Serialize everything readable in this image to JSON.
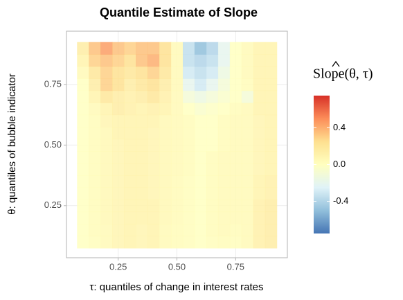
{
  "chart_data": {
    "type": "heatmap",
    "title": "Quantile Estimate of Slope",
    "x_label": "τ: quantiles of change in interest rates",
    "y_label": "θ: quantiles of bubble indicator",
    "legend_title": "Slope(θ, τ)",
    "x": [
      0.1,
      0.15,
      0.2,
      0.25,
      0.3,
      0.35,
      0.4,
      0.45,
      0.5,
      0.55,
      0.6,
      0.65,
      0.7,
      0.75,
      0.8,
      0.85,
      0.9
    ],
    "y": [
      0.1,
      0.15,
      0.2,
      0.25,
      0.3,
      0.35,
      0.4,
      0.45,
      0.5,
      0.55,
      0.6,
      0.65,
      0.7,
      0.75,
      0.8,
      0.85,
      0.9
    ],
    "z": [
      [
        0,
        0.02,
        0.05,
        0.08,
        0.1,
        0.08,
        0.1,
        0.05,
        0.03,
        0.02,
        0,
        0.02,
        0.03,
        0.02,
        0.05,
        0.12,
        0.15
      ],
      [
        0,
        0.03,
        0.05,
        0.08,
        0.1,
        0.08,
        0.1,
        0.05,
        0.03,
        0.02,
        0,
        0.03,
        0.05,
        0.03,
        0.05,
        0.12,
        0.15
      ],
      [
        0,
        0.03,
        0.06,
        0.08,
        0.1,
        0.1,
        0.1,
        0.06,
        0.04,
        0.02,
        0,
        0.03,
        0.05,
        0.05,
        0.05,
        0.12,
        0.15
      ],
      [
        0,
        0.03,
        0.06,
        0.08,
        0.1,
        0.1,
        0.1,
        0.06,
        0.04,
        0.02,
        0,
        0.03,
        0.05,
        0.05,
        0.05,
        0.12,
        0.15
      ],
      [
        0,
        0.03,
        0.06,
        0.08,
        0.1,
        0.1,
        0.08,
        0.06,
        0.04,
        0.02,
        0,
        0.03,
        0.05,
        0.05,
        0.05,
        0.1,
        0.12
      ],
      [
        0,
        0.03,
        0.06,
        0.08,
        0.1,
        0.1,
        0.08,
        0.06,
        0.04,
        0.02,
        0,
        0.03,
        0.05,
        0.05,
        0.05,
        0.1,
        0.12
      ],
      [
        0,
        0.03,
        0.06,
        0.08,
        0.1,
        0.1,
        0.08,
        0.06,
        0.05,
        0.03,
        0,
        0.03,
        0.05,
        0.05,
        0.05,
        0.08,
        0.1
      ],
      [
        0,
        0.03,
        0.06,
        0.08,
        0.1,
        0.1,
        0.08,
        0.06,
        0.05,
        0.03,
        0,
        0.03,
        0.05,
        0.05,
        0.05,
        0.08,
        0.1
      ],
      [
        0,
        0.03,
        0.06,
        0.08,
        0.1,
        0.1,
        0.08,
        0.06,
        0.05,
        0.03,
        0,
        0,
        0.03,
        0.05,
        0.05,
        0.08,
        0.1
      ],
      [
        0,
        0.03,
        0.06,
        0.1,
        0.1,
        0.1,
        0.08,
        0.06,
        0.05,
        0.03,
        0,
        0,
        0.03,
        0.05,
        0.05,
        0.08,
        0.1
      ],
      [
        0,
        0.03,
        0.08,
        0.1,
        0.1,
        0.1,
        0.1,
        0.06,
        0.05,
        0.03,
        0,
        0,
        0.03,
        0.05,
        0.05,
        0.08,
        0.1
      ],
      [
        0,
        0.05,
        0.1,
        0.15,
        0.12,
        0.1,
        0.12,
        0.1,
        0.05,
        0,
        -0.05,
        -0.02,
        0,
        0.03,
        0.05,
        0.1,
        0.1
      ],
      [
        0,
        0.1,
        0.2,
        0.15,
        0.12,
        0.15,
        0.2,
        0.12,
        0.05,
        -0.1,
        -0.15,
        -0.1,
        -0.05,
        0,
        -0.1,
        0.1,
        0.1
      ],
      [
        0,
        0.15,
        0.3,
        0.25,
        0.15,
        0.2,
        0.25,
        0.15,
        0.05,
        -0.2,
        -0.3,
        -0.2,
        -0.1,
        0,
        0.03,
        0.1,
        0.1
      ],
      [
        0.05,
        0.2,
        0.3,
        0.25,
        0.2,
        0.25,
        0.3,
        0.2,
        0.05,
        -0.3,
        -0.35,
        -0.3,
        -0.15,
        0,
        0.05,
        0.1,
        0.1
      ],
      [
        0.1,
        0.3,
        0.35,
        0.3,
        0.25,
        0.35,
        0.4,
        0.25,
        0.05,
        -0.35,
        -0.4,
        -0.35,
        -0.2,
        0,
        0.05,
        0.1,
        0.1
      ],
      [
        0.15,
        0.35,
        0.45,
        0.35,
        0.3,
        0.35,
        0.35,
        0.25,
        0.05,
        -0.35,
        -0.5,
        -0.4,
        -0.2,
        0,
        0.05,
        0.1,
        0.1
      ]
    ],
    "xlim": [
      0.03,
      0.97
    ],
    "ylim": [
      0.035,
      0.97
    ],
    "xticks": [
      {
        "value": 0.25,
        "label": "0.25"
      },
      {
        "value": 0.5,
        "label": "0.50"
      },
      {
        "value": 0.75,
        "label": "0.75"
      }
    ],
    "yticks": [
      {
        "value": 0.25,
        "label": "0.25"
      },
      {
        "value": 0.5,
        "label": "0.50"
      },
      {
        "value": 0.75,
        "label": "0.75"
      }
    ],
    "grid": true,
    "zlim": [
      -0.75,
      0.75
    ],
    "zticks": [
      0.4,
      {
        "value": 0,
        "label": "0.0"
      },
      -0.4
    ],
    "colors": [
      "#4575b4",
      "#91bfdb",
      "#e0f3f8",
      "#ffffbf",
      "#fee090",
      "#fc8d59",
      "#d73027"
    ]
  }
}
